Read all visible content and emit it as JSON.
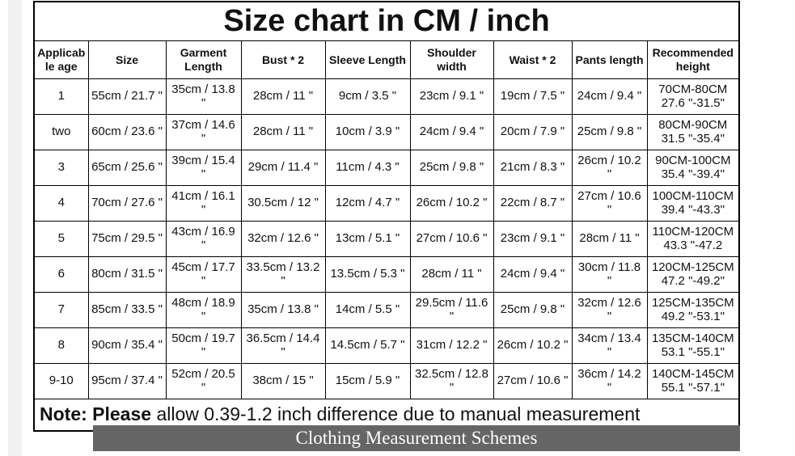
{
  "page": {
    "title": "Size chart in CM / inch",
    "banner_label": "Clothing Measurement Schemes"
  },
  "colors": {
    "banner_bg": "#656565",
    "banner_text": "#ffffff",
    "table_border": "#000000",
    "page_margin_strip": "#f1f1f1"
  },
  "table": {
    "headers": [
      "Applicable age",
      "Size",
      "Garment Length",
      "Bust * 2",
      "Sleeve Length",
      "Shoulder width",
      "Waist * 2",
      "Pants length",
      "Recommended height"
    ],
    "rows": [
      [
        "1",
        "55cm / 21.7 \"",
        "35cm / 13.8 \"",
        "28cm / 11 \"",
        "9cm / 3.5 \"",
        "23cm / 9.1 \"",
        "19cm / 7.5 \"",
        "24cm / 9.4 \"",
        "70CM-80CM 27.6 \"-31.5\""
      ],
      [
        "two",
        "60cm / 23.6 \"",
        "37cm / 14.6 \"",
        "28cm / 11 \"",
        "10cm / 3.9 \"",
        "24cm / 9.4 \"",
        "20cm / 7.9 \"",
        "25cm / 9.8 \"",
        "80CM-90CM 31.5 \"-35.4\""
      ],
      [
        "3",
        "65cm / 25.6 \"",
        "39cm / 15.4 \"",
        "29cm / 11.4 \"",
        "11cm / 4.3 \"",
        "25cm / 9.8 \"",
        "21cm / 8.3 \"",
        "26cm / 10.2 \"",
        "90CM-100CM 35.4 \"-39.4\""
      ],
      [
        "4",
        "70cm / 27.6 \"",
        "41cm / 16.1 \"",
        "30.5cm / 12 \"",
        "12cm / 4.7 \"",
        "26cm / 10.2 \"",
        "22cm / 8.7 \"",
        "27cm / 10.6 \"",
        "100CM-110CM 39.4 \"-43.3\""
      ],
      [
        "5",
        "75cm / 29.5 \"",
        "43cm / 16.9 \"",
        "32cm / 12.6 \"",
        "13cm / 5.1 \"",
        "27cm / 10.6 \"",
        "23cm / 9.1 \"",
        "28cm / 11 \"",
        "110CM-120CM 43.3 \"-47.2"
      ],
      [
        "6",
        "80cm / 31.5 \"",
        "45cm / 17.7 \"",
        "33.5cm / 13.2 \"",
        "13.5cm / 5.3 \"",
        "28cm / 11 \"",
        "24cm / 9.4 \"",
        "30cm / 11.8 \"",
        "120CM-125CM 47.2 \"-49.2\""
      ],
      [
        "7",
        "85cm / 33.5 \"",
        "48cm / 18.9 \"",
        "35cm / 13.8 \"",
        "14cm / 5.5 \"",
        "29.5cm / 11.6 \"",
        "25cm / 9.8 \"",
        "32cm / 12.6 \"",
        "125CM-135CM 49.2 \"-53.1\""
      ],
      [
        "8",
        "90cm / 35.4 \"",
        "50cm / 19.7 \"",
        "36.5cm / 14.4 \"",
        "14.5cm / 5.7 \"",
        "31cm / 12.2 \"",
        "26cm / 10.2 \"",
        "34cm / 13.4 \"",
        "135CM-140CM 53.1 \"-55.1\""
      ],
      [
        "9-10",
        "95cm / 37.4 \"",
        "52cm / 20.5 \"",
        "38cm / 15 \"",
        "15cm / 5.9 \"",
        "32.5cm / 12.8 \"",
        "27cm / 10.6 \"",
        "36cm / 14.2 \"",
        "140CM-145CM 55.1 \"-57.1\""
      ]
    ],
    "note": {
      "bold": "Note: Please",
      "regular": " allow 0.39-1.2 inch difference due to manual measurement"
    }
  }
}
